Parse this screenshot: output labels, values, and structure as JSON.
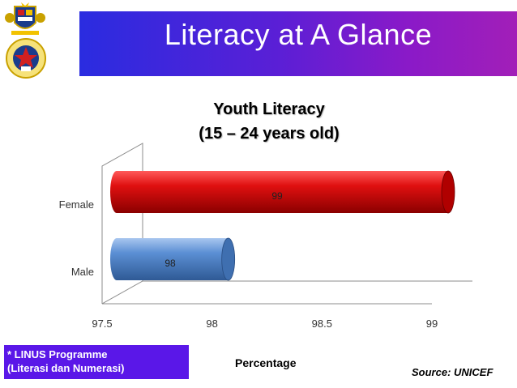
{
  "slide": {
    "title": "Literacy at A Glance",
    "footnote_line1": "* LINUS Programme",
    "footnote_line2": "(Literasi dan Numerasi)",
    "source": "Source: UNICEF"
  },
  "colors": {
    "title_bar_start": "#2a2ce0",
    "title_bar_end": "#a21fb8",
    "female_bar": "#cc0000",
    "male_bar": "#4f81bd",
    "footnote_box": "#5a17e8"
  },
  "chart_data": {
    "type": "bar",
    "orientation": "horizontal",
    "style": "3d-cylinder",
    "title_line1": "Youth Literacy",
    "title_line2": "(15 – 24 years old)",
    "xlabel": "Percentage",
    "categories": [
      "Female",
      "Male"
    ],
    "values": [
      99,
      98
    ],
    "data_labels": [
      "99",
      "98"
    ],
    "xlim": [
      97.5,
      99
    ],
    "xticks": [
      "97.5",
      "98",
      "98.5",
      "99"
    ],
    "grid": false,
    "legend": "none"
  }
}
